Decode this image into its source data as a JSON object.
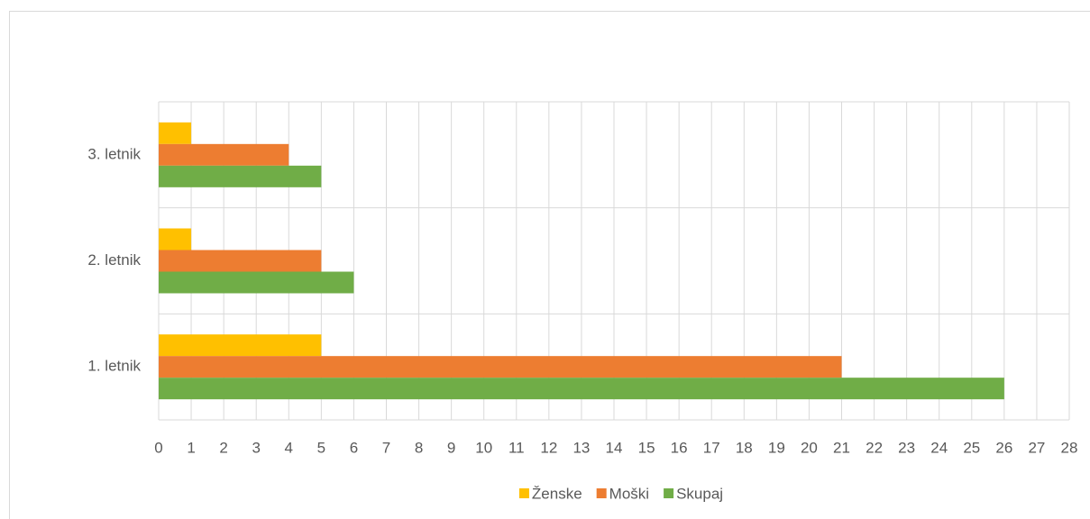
{
  "chart_data": {
    "type": "barh",
    "categories": [
      "1. letnik",
      "2. letnik",
      "3. letnik"
    ],
    "series": [
      {
        "name": "Ženske",
        "color": "#ffc000",
        "values": [
          5,
          1,
          1
        ]
      },
      {
        "name": "Moški",
        "color": "#ed7d31",
        "values": [
          21,
          5,
          4
        ]
      },
      {
        "name": "Skupaj",
        "color": "#70ad47",
        "values": [
          26,
          6,
          5
        ]
      }
    ],
    "xlim": [
      0,
      28
    ],
    "xticks": [
      0,
      1,
      2,
      3,
      4,
      5,
      6,
      7,
      8,
      9,
      10,
      11,
      12,
      13,
      14,
      15,
      16,
      17,
      18,
      19,
      20,
      21,
      22,
      23,
      24,
      25,
      26,
      27,
      28
    ],
    "grid": true,
    "legend": "bottom"
  }
}
